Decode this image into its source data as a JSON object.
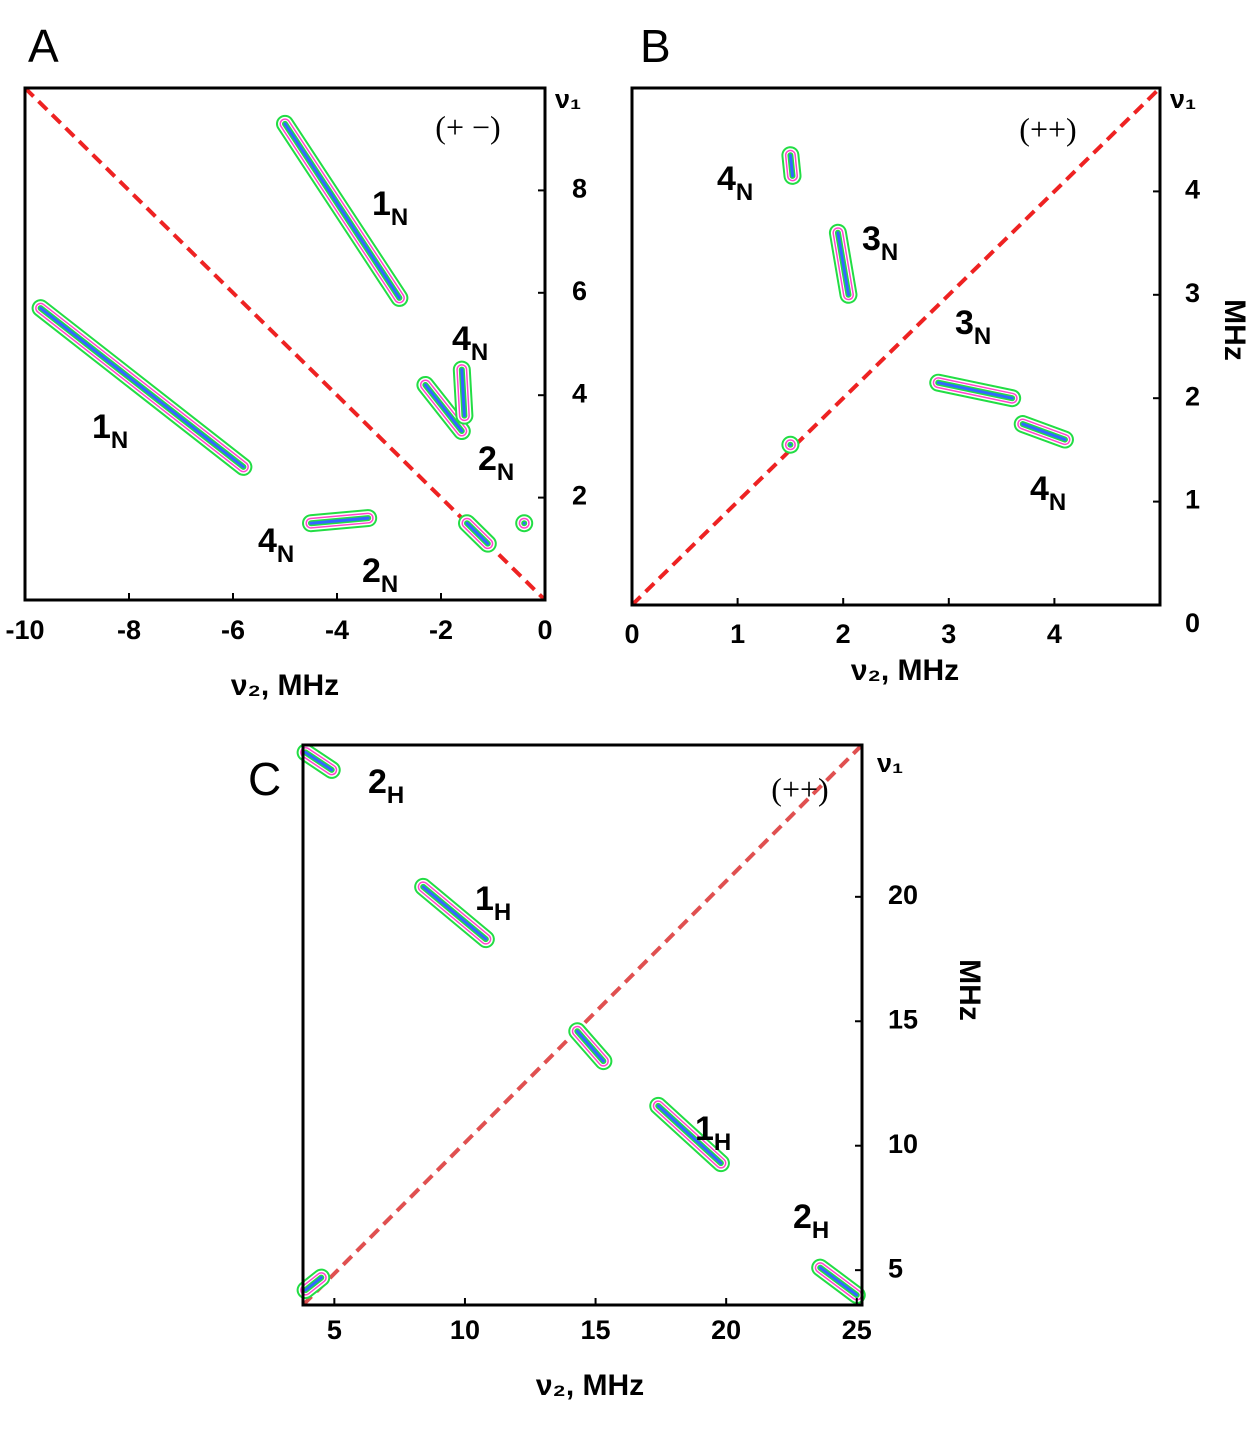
{
  "chart_data": [
    {
      "type": "contour",
      "panel": "A",
      "badge": "(+ −)",
      "xlabel": "ν₂, MHz",
      "ylabel": "ν₁",
      "xlim": [
        -10,
        0
      ],
      "ylim": [
        0,
        10
      ],
      "xticks": [
        -10,
        -8,
        -6,
        -4,
        -2,
        0
      ],
      "yticks": [
        2,
        4,
        6,
        8
      ],
      "diagonal": "anti",
      "diagonal_color": "#ee2222",
      "contour_colors": [
        "#22dd44",
        "#ff44cc",
        "#3366ff"
      ],
      "ridges": [
        {
          "x": [
            -9.7,
            -5.8
          ],
          "y": [
            5.7,
            2.6
          ]
        },
        {
          "x": [
            -5,
            -2.8
          ],
          "y": [
            9.3,
            5.9
          ]
        },
        {
          "x": [
            -2.3,
            -1.6
          ],
          "y": [
            4.2,
            3.3
          ]
        },
        {
          "x": [
            -1.6,
            -1.55
          ],
          "y": [
            4.5,
            3.6
          ]
        },
        {
          "x": [
            -4.5,
            -3.4
          ],
          "y": [
            1.5,
            1.6
          ]
        },
        {
          "x": [
            -1.5,
            -1.1
          ],
          "y": [
            1.5,
            1.1
          ]
        },
        {
          "x": [
            -0.4
          ],
          "y": [
            1.5
          ]
        }
      ],
      "labels": [
        {
          "main": "1",
          "sub": "N"
        },
        {
          "main": "1",
          "sub": "N"
        },
        {
          "main": "4",
          "sub": "N"
        },
        {
          "main": "2",
          "sub": "N"
        },
        {
          "main": "4",
          "sub": "N"
        },
        {
          "main": "2",
          "sub": "N"
        }
      ]
    },
    {
      "type": "contour",
      "panel": "B",
      "badge": "(++)",
      "xlabel": "ν₂, MHz",
      "ylabel": "ν₁",
      "yunit": "MHz",
      "xlim": [
        0,
        5
      ],
      "ylim": [
        0,
        5
      ],
      "xticks": [
        0,
        1,
        2,
        3,
        4
      ],
      "yticks": [
        0,
        1,
        2,
        3,
        4
      ],
      "diagonal": "main",
      "diagonal_color": "#ee2222",
      "contour_colors": [
        "#22dd44",
        "#ff44cc",
        "#3366ff"
      ],
      "ridges": [
        {
          "x": [
            1.5,
            1.52
          ],
          "y": [
            4.35,
            4.15
          ]
        },
        {
          "x": [
            1.95,
            2.05
          ],
          "y": [
            3.6,
            3.0
          ]
        },
        {
          "x": [
            2.9,
            3.6
          ],
          "y": [
            2.15,
            2.0
          ]
        },
        {
          "x": [
            3.7,
            4.1
          ],
          "y": [
            1.75,
            1.6
          ]
        },
        {
          "x": [
            1.5
          ],
          "y": [
            1.55
          ]
        }
      ],
      "labels": [
        {
          "main": "4",
          "sub": "N"
        },
        {
          "main": "3",
          "sub": "N"
        },
        {
          "main": "3",
          "sub": "N"
        },
        {
          "main": "4",
          "sub": "N"
        }
      ]
    },
    {
      "type": "contour",
      "panel": "C",
      "badge": "(++)",
      "xlabel": "ν₂, MHz",
      "ylabel": "ν₁",
      "yunit": "MHz",
      "xlim": [
        3.8,
        25.2
      ],
      "ylim": [
        3.6,
        26.1
      ],
      "xticks": [
        5,
        10,
        15,
        20,
        25
      ],
      "yticks": [
        5,
        10,
        15,
        20
      ],
      "diagonal": "main",
      "diagonal_color": "#e05050",
      "contour_colors": [
        "#22dd44",
        "#ff44cc",
        "#3366ff"
      ],
      "ridges": [
        {
          "x": [
            8.4,
            10.8
          ],
          "y": [
            20.4,
            18.3
          ]
        },
        {
          "x": [
            17.4,
            19.8
          ],
          "y": [
            11.6,
            9.3
          ]
        },
        {
          "x": [
            14.3,
            15.3
          ],
          "y": [
            14.6,
            13.4
          ]
        },
        {
          "x": [
            23.6,
            25
          ],
          "y": [
            5.1,
            4.0
          ]
        },
        {
          "x": [
            3.9,
            4.9
          ],
          "y": [
            25.8,
            25.1
          ]
        },
        {
          "x": [
            3.9,
            4.5
          ],
          "y": [
            4.2,
            4.7
          ]
        }
      ],
      "labels": [
        {
          "main": "2",
          "sub": "H"
        },
        {
          "main": "1",
          "sub": "H"
        },
        {
          "main": "1",
          "sub": "H"
        },
        {
          "main": "2",
          "sub": "H"
        }
      ]
    }
  ]
}
